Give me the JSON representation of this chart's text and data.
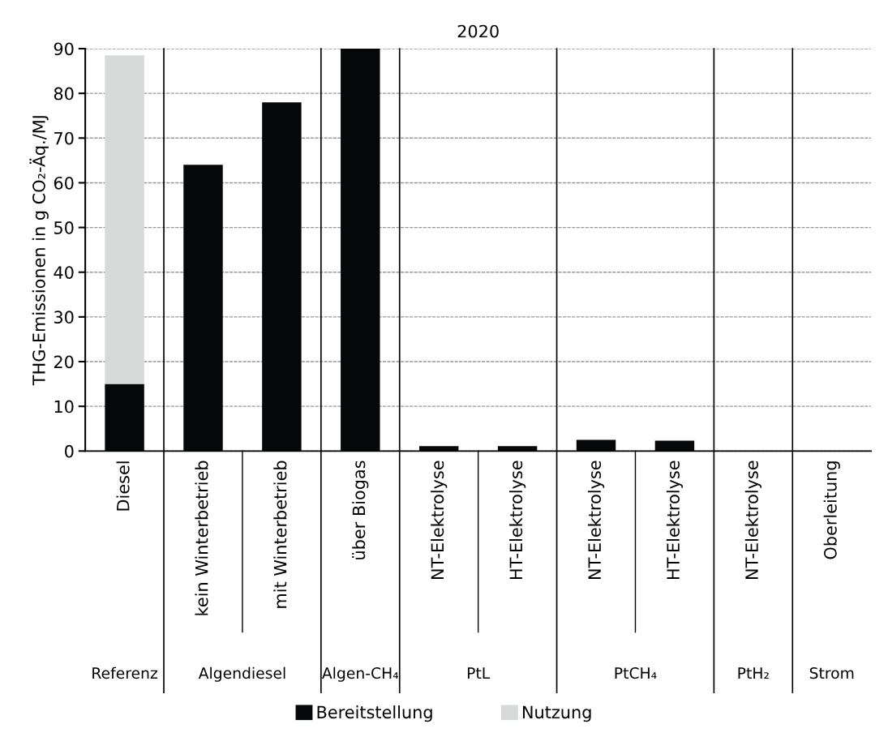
{
  "chart_data": {
    "type": "bar",
    "title": "2020",
    "ylabel": "THG-Emissionen in g CO₂-Äq./MJ",
    "categories": [
      "Diesel",
      "kein Winterbetrieb",
      "mit Winterbetrieb",
      "über Biogas",
      "NT-Elektrolyse",
      "HT-Elektrolyse",
      "NT-Elektrolyse",
      "HT-Elektrolyse",
      "NT-Elektrolyse",
      "Oberleitung"
    ],
    "series": [
      {
        "name": "Bereitstellung",
        "color": "#060709",
        "values": [
          15,
          64,
          78,
          90,
          1.1,
          1.1,
          2.5,
          2.3,
          0,
          0
        ]
      },
      {
        "name": "Nutzung",
        "color": "#d8dad9",
        "values": [
          73.5,
          null,
          null,
          null,
          null,
          null,
          null,
          null,
          null,
          null
        ]
      }
    ],
    "stacked": true,
    "ylim": [
      0,
      90
    ],
    "yticks": [
      0,
      10,
      20,
      30,
      40,
      50,
      60,
      70,
      80,
      90
    ],
    "grid": "y",
    "legend": "bottom",
    "annotations": [
      "Referenz",
      "Algendiesel",
      "Algen-CH₄",
      "PtL",
      "PtCH₄",
      "PtH₂",
      "Strom"
    ]
  }
}
